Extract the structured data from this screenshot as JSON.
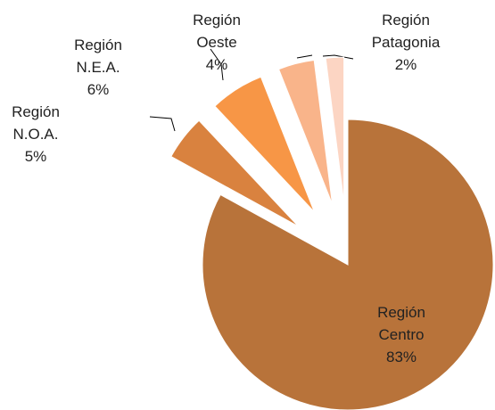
{
  "chart_data": {
    "type": "pie",
    "categories": [
      "Región Centro",
      "Región N.O.A.",
      "Región N.E.A.",
      "Región Oeste",
      "Región Patagonia"
    ],
    "values": [
      83,
      5,
      6,
      4,
      2
    ],
    "value_labels": [
      "83%",
      "5%",
      "6%",
      "4%",
      "2%"
    ],
    "colors": [
      "#b8733a",
      "#d9823f",
      "#f79646",
      "#f9b48a",
      "#fcd5c3"
    ]
  }
}
